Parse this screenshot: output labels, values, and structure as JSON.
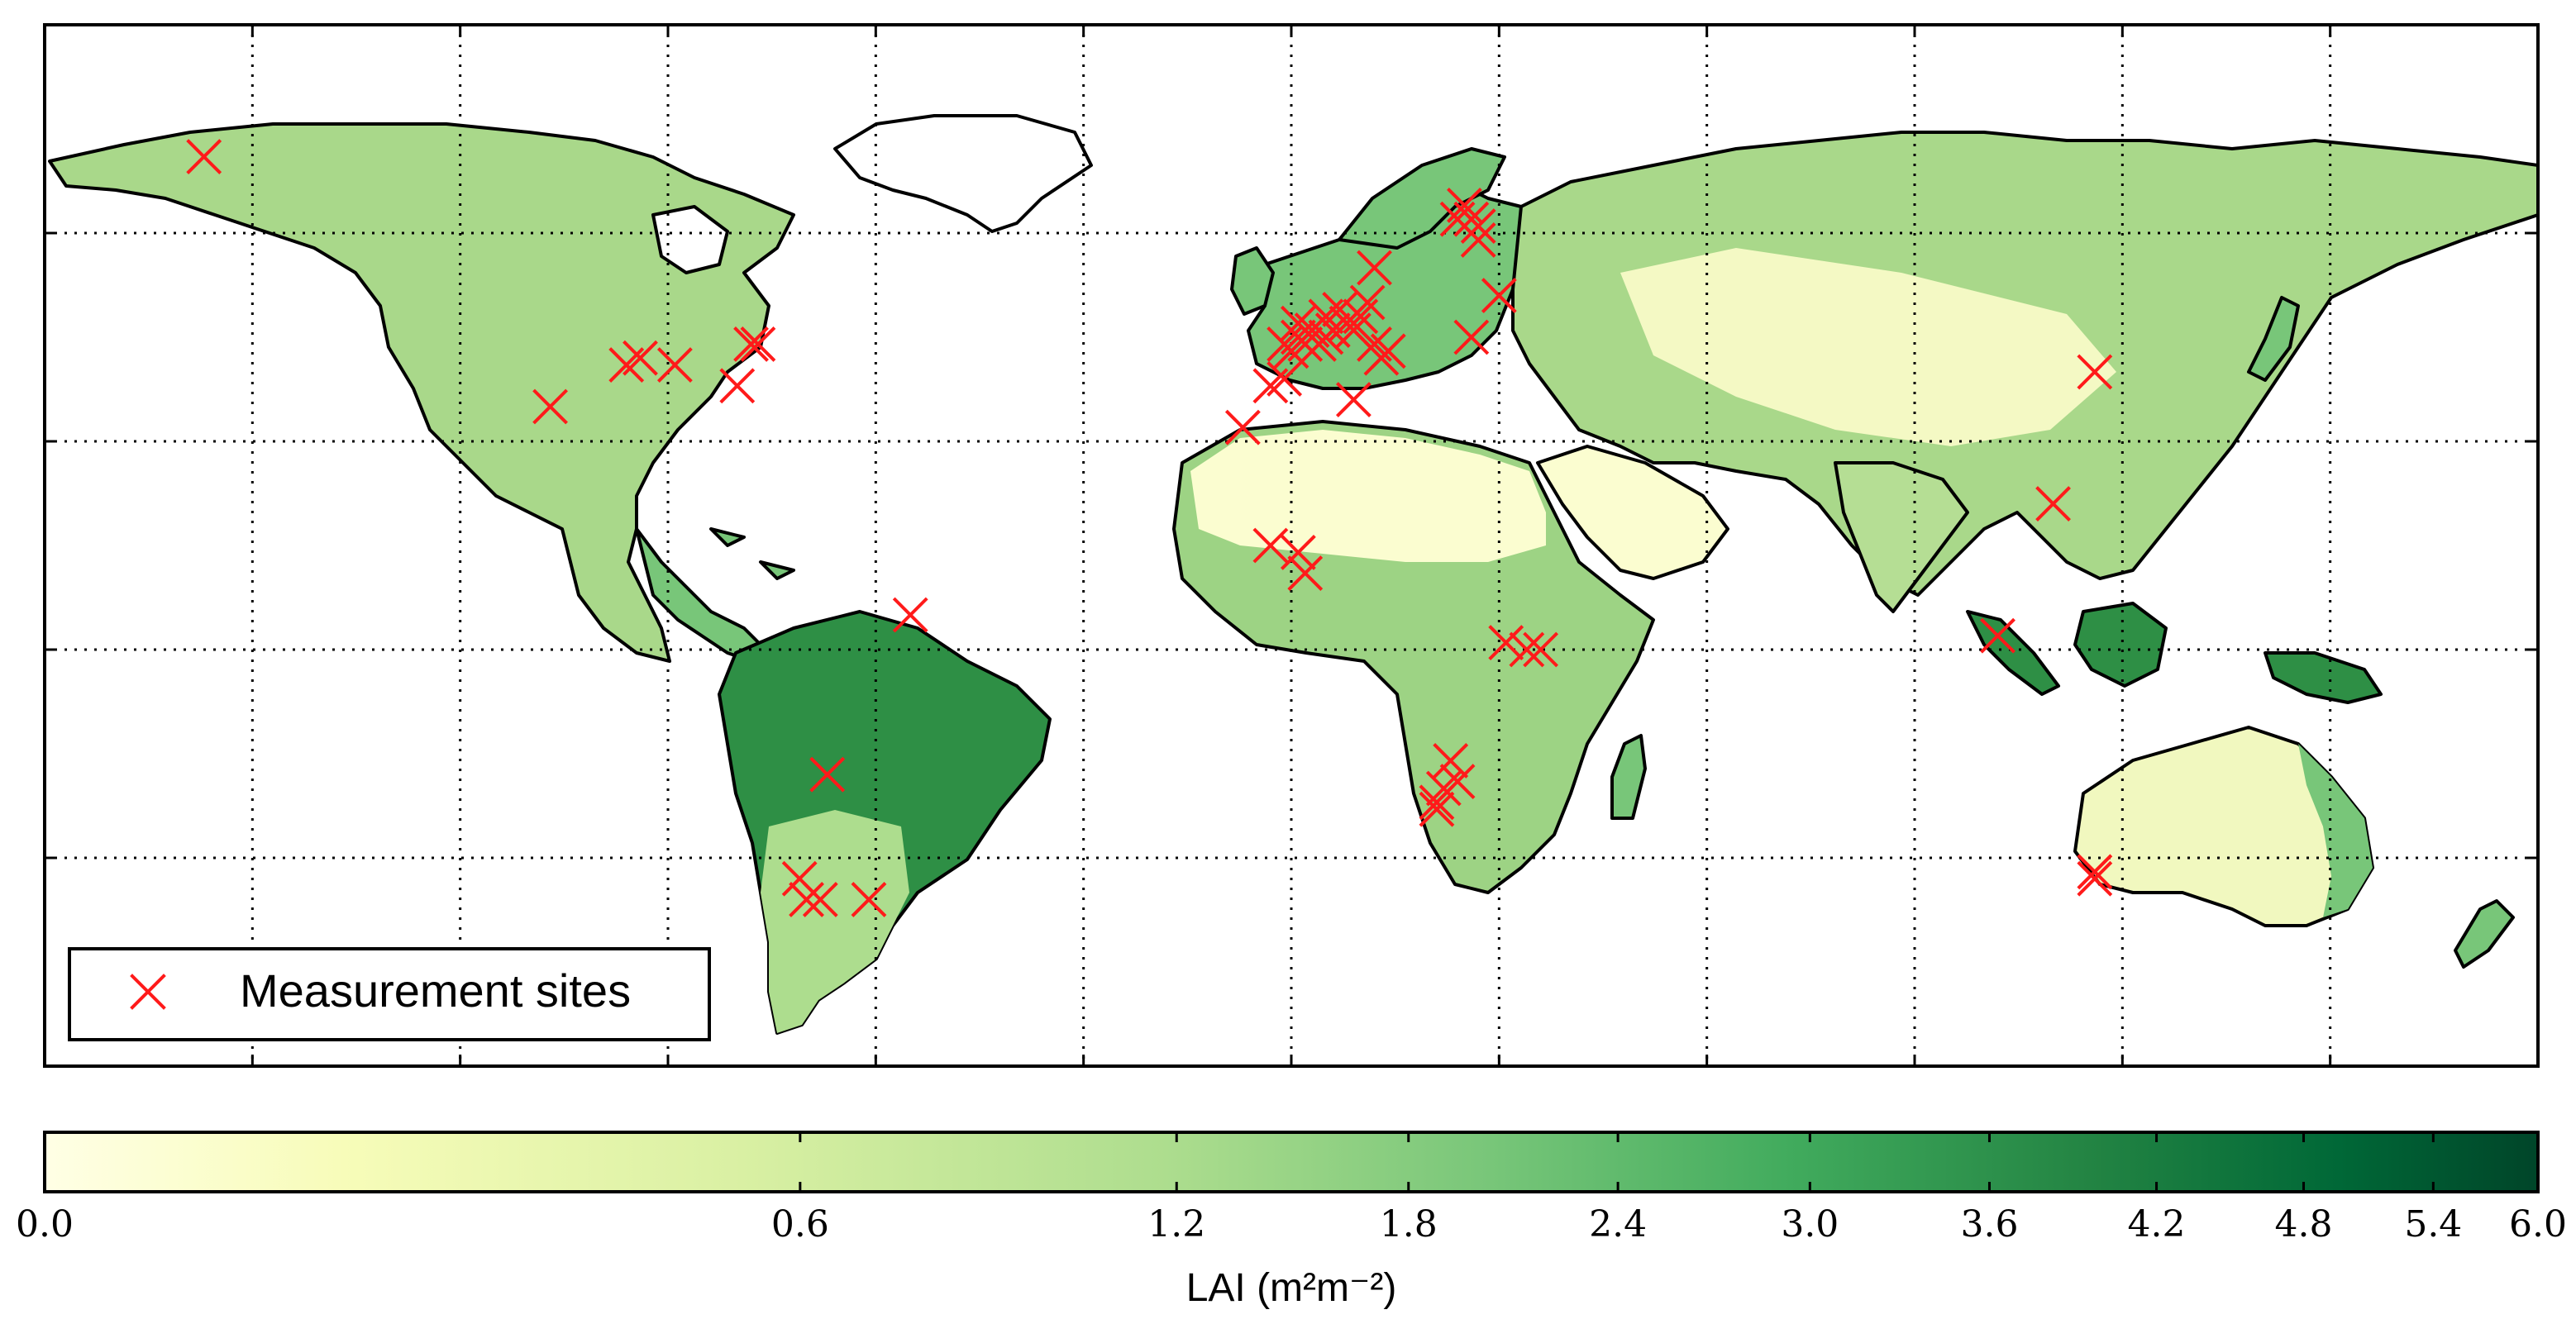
{
  "map": {
    "projection": "plate-carree",
    "lon_range": [
      -180,
      180
    ],
    "lat_range": [
      -60,
      90
    ],
    "gridlines": {
      "lon": [
        -150,
        -120,
        -90,
        -60,
        -30,
        0,
        30,
        60,
        90,
        120,
        150
      ],
      "lat": [
        -30,
        0,
        30,
        60
      ],
      "style": "dotted"
    },
    "land_color_scale": "YlGn",
    "colors": {
      "sites": "#ff1a1a",
      "coast": "#000000",
      "ocean": "#ffffff",
      "ramp": [
        "#ffffe5",
        "#f7fcb9",
        "#d9f0a3",
        "#addd8e",
        "#78c679",
        "#41ab5d",
        "#238443",
        "#006837",
        "#004529"
      ]
    }
  },
  "legend": {
    "label": "Measurement sites",
    "placement": "lower-left",
    "marker": "x-icon"
  },
  "sites": [
    {
      "lon": -157,
      "lat": 71
    },
    {
      "lon": -107,
      "lat": 35
    },
    {
      "lon": -96,
      "lat": 41
    },
    {
      "lon": -94,
      "lat": 42
    },
    {
      "lon": -89,
      "lat": 41
    },
    {
      "lon": -80,
      "lat": 38
    },
    {
      "lon": -78,
      "lat": 44
    },
    {
      "lon": -77,
      "lat": 44
    },
    {
      "lon": -55,
      "lat": 5
    },
    {
      "lon": -67,
      "lat": -18
    },
    {
      "lon": -70,
      "lat": -36
    },
    {
      "lon": -71,
      "lat": -33
    },
    {
      "lon": -68,
      "lat": -36
    },
    {
      "lon": -61,
      "lat": -36
    },
    {
      "lon": -7,
      "lat": 32
    },
    {
      "lon": -3,
      "lat": 38
    },
    {
      "lon": -1,
      "lat": 39
    },
    {
      "lon": -1,
      "lat": 44
    },
    {
      "lon": 0,
      "lat": 43
    },
    {
      "lon": 1,
      "lat": 45
    },
    {
      "lon": 1,
      "lat": 47
    },
    {
      "lon": 2,
      "lat": 44
    },
    {
      "lon": 3,
      "lat": 46
    },
    {
      "lon": 4,
      "lat": 44
    },
    {
      "lon": 5,
      "lat": 48
    },
    {
      "lon": 5,
      "lat": 45
    },
    {
      "lon": 6,
      "lat": 46
    },
    {
      "lon": 7,
      "lat": 49
    },
    {
      "lon": 8,
      "lat": 47
    },
    {
      "lon": 9,
      "lat": 46
    },
    {
      "lon": 10,
      "lat": 48
    },
    {
      "lon": 11,
      "lat": 50
    },
    {
      "lon": 12,
      "lat": 44
    },
    {
      "lon": 9,
      "lat": 36
    },
    {
      "lon": 13,
      "lat": 42
    },
    {
      "lon": 14,
      "lat": 43
    },
    {
      "lon": 12,
      "lat": 55
    },
    {
      "lon": 24,
      "lat": 62
    },
    {
      "lon": 25,
      "lat": 64
    },
    {
      "lon": 26,
      "lat": 62
    },
    {
      "lon": 27,
      "lat": 61
    },
    {
      "lon": 27,
      "lat": 59
    },
    {
      "lon": 26,
      "lat": 45
    },
    {
      "lon": 30,
      "lat": 51
    },
    {
      "lon": -3,
      "lat": 15
    },
    {
      "lon": 1,
      "lat": 14
    },
    {
      "lon": 2,
      "lat": 11
    },
    {
      "lon": 31,
      "lat": 1
    },
    {
      "lon": 34,
      "lat": 0
    },
    {
      "lon": 36,
      "lat": 0
    },
    {
      "lon": 23,
      "lat": -16
    },
    {
      "lon": 24,
      "lat": -19
    },
    {
      "lon": 22,
      "lat": -20
    },
    {
      "lon": 21,
      "lat": -23
    },
    {
      "lon": 21,
      "lat": -22
    },
    {
      "lon": 102,
      "lat": 2
    },
    {
      "lon": 110,
      "lat": 21
    },
    {
      "lon": 116,
      "lat": 40
    },
    {
      "lon": 116,
      "lat": -32
    },
    {
      "lon": 116,
      "lat": -33
    }
  ],
  "colorbar": {
    "min": 0.0,
    "max": 6.0,
    "ticks": [
      0.0,
      0.6,
      1.2,
      1.8,
      2.4,
      3.0,
      3.6,
      4.2,
      4.8,
      5.4,
      6.0
    ],
    "tick_labels": [
      "0.0",
      "0.6",
      "1.2",
      "1.8",
      "2.4",
      "3.0",
      "3.6",
      "4.2",
      "4.8",
      "5.4",
      "6.0"
    ],
    "title": "LAI (m²m⁻²)",
    "scale": "nonlinear"
  }
}
